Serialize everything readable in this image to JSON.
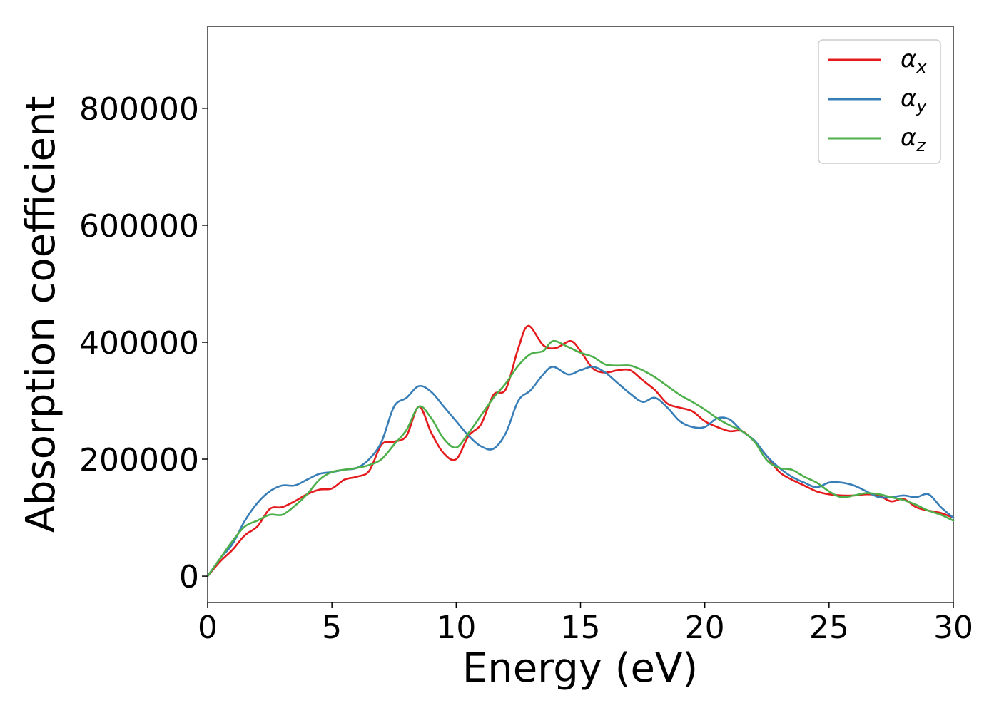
{
  "chart_data": {
    "type": "line",
    "title": "",
    "xlabel": "Energy (eV)",
    "ylabel": "Absorption coefficient",
    "xlim": [
      0,
      30
    ],
    "ylim": [
      -45000,
      940000
    ],
    "xticks": [
      0,
      5,
      10,
      15,
      20,
      25,
      30
    ],
    "yticks": [
      0,
      200000,
      400000,
      600000,
      800000
    ],
    "grid": false,
    "legend_position": "top-right",
    "series": [
      {
        "name": "αx",
        "symbol": "α",
        "subscript": "x",
        "color": "#e41a1c",
        "x": [
          0,
          0.5,
          1,
          1.5,
          2,
          2.5,
          3,
          3.5,
          4,
          4.5,
          5,
          5.5,
          6,
          6.5,
          7,
          7.5,
          8,
          8.5,
          9,
          9.5,
          10,
          10.5,
          11,
          11.5,
          12,
          12.5,
          12.9,
          13.5,
          14,
          14.6,
          15,
          15.5,
          16,
          16.5,
          17,
          17.5,
          18,
          18.5,
          19,
          19.5,
          20,
          20.5,
          21,
          21.5,
          22,
          22.5,
          23,
          23.5,
          24,
          24.5,
          25,
          25.5,
          26,
          26.5,
          27,
          27.5,
          28,
          28.5,
          29,
          29.5,
          30
        ],
        "y": [
          0,
          25000,
          45000,
          70000,
          85000,
          115000,
          118000,
          128000,
          140000,
          148000,
          150000,
          165000,
          170000,
          180000,
          225000,
          230000,
          240000,
          290000,
          245000,
          210000,
          200000,
          240000,
          260000,
          310000,
          320000,
          390000,
          428000,
          395000,
          390000,
          402000,
          385000,
          355000,
          348000,
          352000,
          352000,
          335000,
          318000,
          295000,
          288000,
          282000,
          265000,
          255000,
          248000,
          248000,
          230000,
          205000,
          178000,
          165000,
          155000,
          145000,
          140000,
          138000,
          138000,
          140000,
          138000,
          128000,
          132000,
          118000,
          112000,
          108000,
          100000
        ]
      },
      {
        "name": "αy",
        "symbol": "α",
        "subscript": "y",
        "color": "#377eb8",
        "x": [
          0,
          0.5,
          1,
          1.5,
          2,
          2.5,
          3,
          3.5,
          4,
          4.5,
          5,
          5.5,
          6,
          6.5,
          7,
          7.5,
          8,
          8.5,
          9,
          9.5,
          10,
          10.5,
          11,
          11.5,
          12,
          12.5,
          13,
          13.5,
          13.9,
          14.5,
          15,
          15.5,
          16,
          16.5,
          17,
          17.5,
          18,
          18.5,
          19,
          19.5,
          20,
          20.5,
          21,
          21.5,
          22,
          22.5,
          23,
          23.5,
          24,
          24.5,
          25,
          25.5,
          26,
          26.5,
          27,
          27.5,
          28,
          28.5,
          29,
          29.5,
          30
        ],
        "y": [
          0,
          30000,
          55000,
          95000,
          125000,
          145000,
          155000,
          155000,
          165000,
          175000,
          178000,
          182000,
          185000,
          200000,
          230000,
          290000,
          305000,
          325000,
          315000,
          290000,
          265000,
          240000,
          222000,
          218000,
          245000,
          300000,
          318000,
          345000,
          358000,
          345000,
          352000,
          358000,
          348000,
          330000,
          312000,
          298000,
          305000,
          288000,
          265000,
          255000,
          255000,
          270000,
          268000,
          248000,
          232000,
          205000,
          185000,
          170000,
          160000,
          152000,
          160000,
          160000,
          155000,
          145000,
          135000,
          135000,
          138000,
          135000,
          140000,
          118000,
          100000
        ]
      },
      {
        "name": "αz",
        "symbol": "α",
        "subscript": "z",
        "color": "#4daf4a",
        "x": [
          0,
          0.5,
          1,
          1.5,
          2,
          2.5,
          3,
          3.5,
          4,
          4.5,
          5,
          5.5,
          6,
          6.5,
          7,
          7.5,
          8,
          8.5,
          9,
          9.5,
          10,
          10.5,
          11,
          11.5,
          12,
          12.5,
          13,
          13.5,
          13.9,
          14.5,
          15,
          15.5,
          16,
          16.5,
          17,
          17.5,
          18,
          18.5,
          19,
          19.5,
          20,
          20.5,
          21,
          21.5,
          22,
          22.5,
          23,
          23.5,
          24,
          24.5,
          25,
          25.5,
          26,
          26.5,
          27,
          27.5,
          28,
          28.5,
          29,
          29.5,
          30
        ],
        "y": [
          0,
          30000,
          60000,
          85000,
          95000,
          105000,
          105000,
          120000,
          140000,
          165000,
          178000,
          182000,
          185000,
          190000,
          200000,
          225000,
          250000,
          290000,
          270000,
          235000,
          220000,
          245000,
          275000,
          305000,
          330000,
          360000,
          380000,
          385000,
          402000,
          392000,
          382000,
          375000,
          362000,
          360000,
          360000,
          352000,
          340000,
          325000,
          310000,
          298000,
          285000,
          270000,
          258000,
          248000,
          230000,
          198000,
          185000,
          182000,
          170000,
          160000,
          145000,
          135000,
          138000,
          142000,
          140000,
          135000,
          130000,
          122000,
          112000,
          105000,
          95000
        ]
      }
    ]
  }
}
